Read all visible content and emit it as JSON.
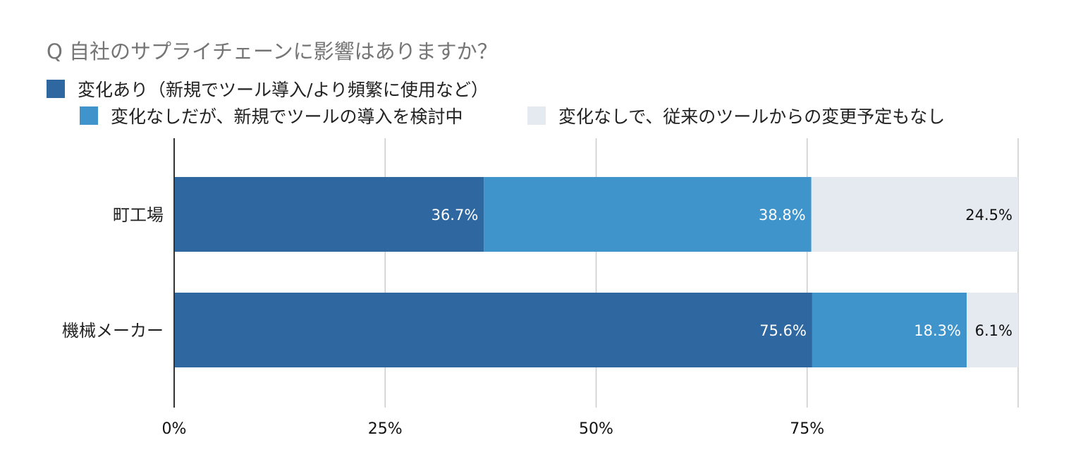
{
  "chart_data": {
    "type": "bar",
    "orientation": "horizontal",
    "stacked": "percent",
    "title": "Q 自社のサプライチェーンに影響はありますか？",
    "categories": [
      "町工場",
      "機械メーカー"
    ],
    "series": [
      {
        "name": "変化あり（新規でツール導入/より頻繁に使用など）",
        "values": [
          36.7,
          75.6
        ],
        "labels": [
          "36.7%",
          "75.6%"
        ],
        "color": "#2f67a0"
      },
      {
        "name": "変化なしだが、新規でツールの導入を検討中",
        "values": [
          38.8,
          18.3
        ],
        "labels": [
          "38.8%",
          "18.3%"
        ],
        "color": "#3f94cc"
      },
      {
        "name": "変化なしで、従来のツールからの変更予定もなし",
        "values": [
          24.5,
          6.1
        ],
        "labels": [
          "24.5%",
          "6.1%"
        ],
        "color": "#e5eaf1"
      }
    ],
    "x_ticks": [
      "0%",
      "25%",
      "50%",
      "75%"
    ],
    "xlim": [
      0,
      100
    ],
    "grid": true,
    "legend_position": "top"
  }
}
